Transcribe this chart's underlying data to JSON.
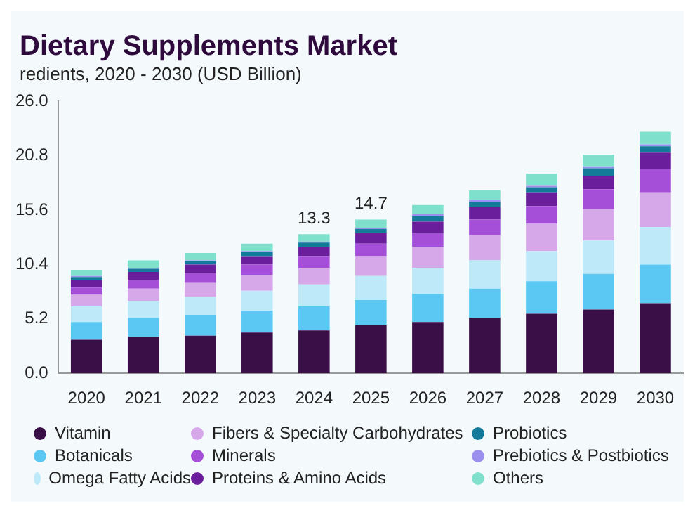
{
  "chart_data": {
    "type": "bar",
    "title": "Dietary Supplements Market",
    "subtitle": "redients, 2020 - 2030 (USD Billion)",
    "categories": [
      "2020",
      "2021",
      "2022",
      "2023",
      "2024",
      "2025",
      "2026",
      "2027",
      "2028",
      "2029",
      "2030"
    ],
    "stacked": true,
    "ylim": [
      0,
      26
    ],
    "yticks": [
      {
        "value": 0,
        "label": "0.0"
      },
      5.2,
      10.4,
      15.6,
      20.8,
      {
        "value": 26,
        "label": "26.0"
      }
    ],
    "grid": false,
    "legend": "bottom",
    "totals": [
      null,
      null,
      null,
      null,
      "13.3",
      "14.7",
      null,
      null,
      null,
      null,
      null
    ],
    "series": [
      {
        "name": "Vitamin",
        "color": "#3a0f47",
        "values": [
          3.2,
          3.5,
          3.6,
          3.9,
          4.1,
          4.6,
          4.9,
          5.3,
          5.7,
          6.1,
          6.7
        ]
      },
      {
        "name": "Botanicals",
        "color": "#5bc8f3",
        "values": [
          1.7,
          1.8,
          2.0,
          2.1,
          2.3,
          2.4,
          2.7,
          2.8,
          3.1,
          3.4,
          3.7
        ]
      },
      {
        "name": "Omega Fatty Acids",
        "color": "#bde9f8",
        "values": [
          1.5,
          1.6,
          1.7,
          1.9,
          2.1,
          2.3,
          2.5,
          2.7,
          2.9,
          3.2,
          3.6
        ]
      },
      {
        "name": "Fibers & Specialty Carbohydrates",
        "color": "#d6a8ea",
        "values": [
          1.1,
          1.2,
          1.4,
          1.5,
          1.6,
          1.9,
          2.0,
          2.4,
          2.6,
          3.0,
          3.3
        ]
      },
      {
        "name": "Minerals",
        "color": "#a54fd8",
        "values": [
          0.7,
          0.8,
          0.9,
          1.0,
          1.1,
          1.2,
          1.3,
          1.5,
          1.7,
          1.9,
          2.2
        ]
      },
      {
        "name": "Proteins & Amino Acids",
        "color": "#6a1e9c",
        "values": [
          0.7,
          0.8,
          0.8,
          0.8,
          0.9,
          1.0,
          1.1,
          1.2,
          1.3,
          1.3,
          1.6
        ]
      },
      {
        "name": "Probiotics",
        "color": "#137a99",
        "values": [
          0.3,
          0.3,
          0.3,
          0.4,
          0.4,
          0.4,
          0.5,
          0.5,
          0.5,
          0.7,
          0.6
        ]
      },
      {
        "name": "Prebiotics & Postbiotics",
        "color": "#9b8ff0",
        "values": [
          0.1,
          0.1,
          0.1,
          0.1,
          0.1,
          0.1,
          0.2,
          0.2,
          0.2,
          0.2,
          0.2
        ]
      },
      {
        "name": "Others",
        "color": "#7fe0cc",
        "values": [
          0.6,
          0.7,
          0.7,
          0.7,
          0.7,
          0.8,
          0.9,
          0.9,
          1.1,
          1.1,
          1.2
        ]
      }
    ]
  }
}
